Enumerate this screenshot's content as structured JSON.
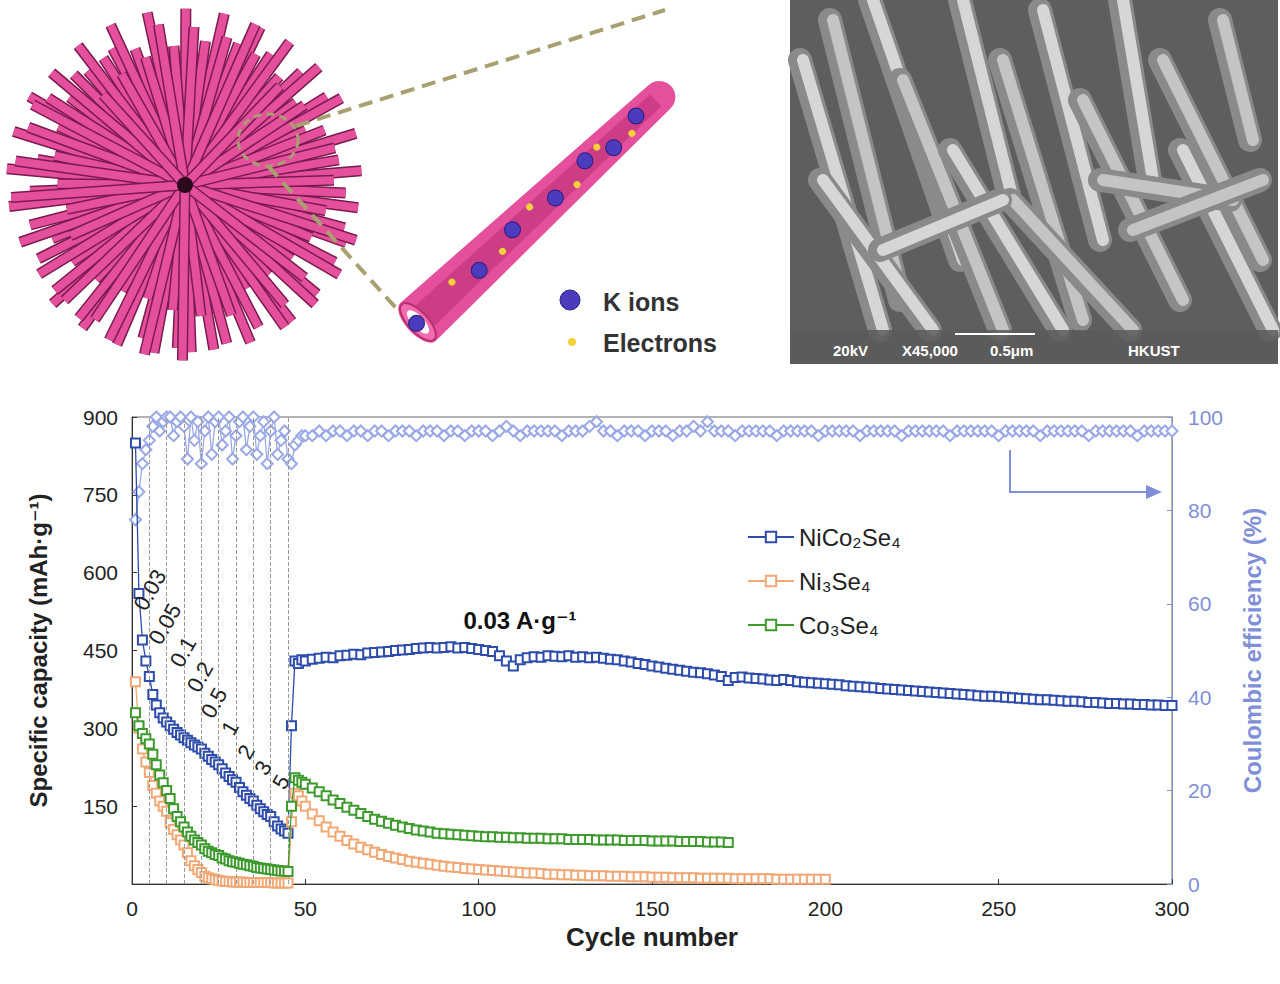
{
  "illustration": {
    "legend": [
      {
        "label": "K ions",
        "color": "#4b3bbd"
      },
      {
        "label": "Electrons",
        "color": "#f2d23a"
      }
    ]
  },
  "sem_image": {
    "voltage": "20kV",
    "magnification": "X45,000",
    "scale_bar": "0.5μm",
    "institution": "HKUST"
  },
  "chart_data": {
    "type": "line",
    "xlabel": "Cycle number",
    "ylabel": "Specific capacity (mAh·g⁻¹)",
    "y2label": "Coulombic efficiency (%)",
    "annotation": "0.03 A·g⁻¹",
    "rate_labels": [
      "0.03",
      "0.05",
      "0.1",
      "0.2",
      "0.5",
      "1",
      "2",
      "3",
      "5"
    ],
    "rate_boundaries": [
      5,
      10,
      15,
      20,
      25,
      30,
      35,
      40,
      45
    ],
    "xlim": [
      0,
      300
    ],
    "xticks": [
      0,
      50,
      100,
      150,
      200,
      250,
      300
    ],
    "ylim": [
      0,
      900
    ],
    "yticks": [
      150,
      300,
      450,
      600,
      750,
      900
    ],
    "y2lim": [
      0,
      100
    ],
    "y2ticks": [
      0,
      20,
      40,
      60,
      80,
      100
    ],
    "grid": false,
    "legend": "upper right",
    "x": [
      1,
      2,
      3,
      4,
      5,
      6,
      7,
      8,
      9,
      10,
      11,
      12,
      13,
      14,
      15,
      16,
      17,
      18,
      19,
      20,
      21,
      22,
      23,
      24,
      25,
      26,
      27,
      28,
      29,
      30,
      31,
      32,
      33,
      34,
      35,
      36,
      37,
      38,
      39,
      40,
      41,
      42,
      43,
      44,
      45,
      46,
      47,
      48,
      49,
      50,
      52,
      54,
      56,
      58,
      60,
      62,
      64,
      66,
      68,
      70,
      72,
      74,
      76,
      78,
      80,
      82,
      84,
      86,
      88,
      90,
      92,
      94,
      96,
      98,
      100,
      102,
      104,
      106,
      108,
      110,
      112,
      114,
      116,
      118,
      120,
      122,
      124,
      126,
      128,
      130,
      132,
      134,
      136,
      138,
      140,
      142,
      144,
      146,
      148,
      150,
      152,
      154,
      156,
      158,
      160,
      162,
      164,
      166,
      168,
      170,
      172,
      174,
      176,
      178,
      180,
      182,
      184,
      186,
      188,
      190,
      192,
      194,
      196,
      198,
      200,
      202,
      204,
      206,
      208,
      210,
      212,
      214,
      216,
      218,
      220,
      222,
      224,
      226,
      228,
      230,
      232,
      234,
      236,
      238,
      240,
      242,
      244,
      246,
      248,
      250,
      252,
      254,
      256,
      258,
      260,
      262,
      264,
      266,
      268,
      270,
      272,
      274,
      276,
      278,
      280,
      282,
      284,
      286,
      288,
      290,
      292,
      294,
      296,
      298,
      300
    ],
    "series": [
      {
        "name": "NiCo₂Se₄",
        "color": "#2d4cab",
        "marker": "square",
        "line_style": "solid",
        "values": [
          850,
          560,
          470,
          430,
          400,
          365,
          345,
          330,
          320,
          312,
          305,
          298,
          292,
          287,
          282,
          277,
          272,
          268,
          264,
          260,
          252,
          246,
          240,
          235,
          230,
          222,
          214,
          207,
          201,
          196,
          186,
          178,
          171,
          165,
          160,
          152,
          145,
          139,
          134,
          130,
          120,
          112,
          106,
          102,
          98,
          305,
          430,
          425,
          432,
          430,
          433,
          435,
          437,
          436,
          440,
          441,
          443,
          442,
          445,
          446,
          447,
          448,
          450,
          451,
          452,
          454,
          455,
          456,
          455,
          456,
          457,
          455,
          456,
          454,
          452,
          450,
          448,
          440,
          430,
          420,
          432,
          436,
          438,
          437,
          440,
          439,
          438,
          440,
          437,
          438,
          436,
          437,
          435,
          433,
          432,
          430,
          428,
          425,
          423,
          420,
          418,
          416,
          414,
          412,
          410,
          408,
          407,
          405,
          403,
          400,
          392,
          398,
          399,
          397,
          396,
          395,
          393,
          392,
          394,
          392,
          390,
          389,
          388,
          387,
          386,
          385,
          384,
          382,
          381,
          380,
          379,
          378,
          377,
          376,
          375,
          374,
          373,
          372,
          371,
          370,
          369,
          368,
          367,
          366,
          365,
          364,
          363,
          362,
          362,
          361,
          360,
          359,
          358,
          357,
          356,
          355,
          355,
          354,
          353,
          352,
          352,
          351,
          350,
          350,
          349,
          348,
          348,
          347,
          347,
          346,
          346,
          345,
          345,
          344,
          344
        ]
      },
      {
        "name": "Ni₃Se₄",
        "color": "#f2a874",
        "marker": "square",
        "line_style": "solid",
        "values": [
          390,
          300,
          260,
          235,
          215,
          190,
          175,
          160,
          150,
          140,
          118,
          105,
          95,
          85,
          75,
          60,
          45,
          35,
          28,
          22,
          15,
          12,
          10,
          8,
          7,
          6,
          5,
          5,
          4,
          4,
          4,
          4,
          3,
          3,
          3,
          3,
          3,
          3,
          3,
          3,
          2,
          2,
          2,
          2,
          2,
          120,
          175,
          170,
          160,
          150,
          135,
          122,
          110,
          100,
          92,
          84,
          77,
          71,
          66,
          61,
          57,
          53,
          50,
          47,
          44,
          42,
          40,
          38,
          36,
          34,
          33,
          32,
          30,
          29,
          28,
          27,
          26,
          25,
          24,
          23,
          22,
          21,
          21,
          20,
          19,
          19,
          18,
          18,
          17,
          17,
          16,
          16,
          16,
          15,
          15,
          15,
          14,
          14,
          14,
          13,
          13,
          13,
          12,
          12,
          12,
          12,
          11,
          11,
          11,
          11,
          11,
          10,
          10,
          10,
          10,
          10,
          10,
          9,
          9,
          9,
          9,
          9,
          9,
          9,
          9,
          null,
          null,
          null,
          null,
          null,
          null,
          null,
          null,
          null,
          null,
          null,
          null,
          null,
          null,
          null,
          null,
          null,
          null,
          null,
          null,
          null,
          null,
          null,
          null,
          null,
          null,
          null,
          null,
          null,
          null,
          null,
          null,
          null,
          null,
          null,
          null,
          null,
          null,
          null,
          null,
          null,
          null,
          null,
          null,
          null,
          null,
          null,
          null,
          null,
          null
        ]
      },
      {
        "name": "Co₃Se₄",
        "color": "#3d9a2c",
        "marker": "square",
        "line_style": "solid",
        "values": [
          330,
          305,
          290,
          280,
          270,
          250,
          230,
          210,
          195,
          180,
          165,
          145,
          130,
          120,
          110,
          100,
          92,
          85,
          80,
          75,
          68,
          63,
          60,
          57,
          55,
          50,
          48,
          45,
          43,
          42,
          40,
          38,
          37,
          35,
          34,
          32,
          31,
          30,
          29,
          28,
          27,
          26,
          25,
          25,
          24,
          150,
          205,
          200,
          196,
          192,
          185,
          178,
          170,
          162,
          155,
          148,
          142,
          136,
          130,
          125,
          121,
          117,
          113,
          110,
          107,
          104,
          102,
          100,
          98,
          97,
          96,
          95,
          94,
          93,
          92,
          91,
          91,
          90,
          90,
          89,
          89,
          88,
          88,
          88,
          87,
          87,
          87,
          86,
          86,
          86,
          86,
          85,
          85,
          85,
          85,
          84,
          84,
          84,
          84,
          83,
          83,
          83,
          83,
          82,
          82,
          82,
          82,
          81,
          81,
          81,
          80,
          null,
          null,
          null,
          null,
          null,
          null,
          null,
          null,
          null,
          null,
          null,
          null,
          null,
          null,
          null,
          null,
          null,
          null,
          null,
          null,
          null,
          null,
          null,
          null,
          null,
          null,
          null,
          null,
          null,
          null,
          null,
          null,
          null,
          null,
          null,
          null,
          null,
          null,
          null,
          null,
          null,
          null,
          null,
          null,
          null,
          null,
          null,
          null,
          null,
          null,
          null,
          null,
          null,
          null,
          null,
          null,
          null,
          null,
          null,
          null,
          null,
          null,
          null,
          null
        ]
      },
      {
        "axis": "y2",
        "color": "#9aa8e6",
        "marker": "diamond",
        "line_style": "solid",
        "values": [
          78,
          84,
          90,
          93,
          95,
          98,
          100,
          97,
          99,
          100,
          100,
          96,
          99,
          100,
          98,
          91,
          100,
          95,
          99,
          90,
          97,
          100,
          92,
          99,
          100,
          94,
          97,
          100,
          91,
          96,
          99,
          100,
          93,
          98,
          100,
          92,
          96,
          99,
          90,
          97,
          100,
          92,
          95,
          97,
          91,
          90,
          94,
          95,
          96,
          96,
          96,
          97,
          96,
          97,
          97,
          96,
          97,
          97,
          96,
          97,
          97,
          96,
          97,
          97,
          97,
          96,
          97,
          97,
          97,
          96,
          97,
          97,
          96,
          97,
          97,
          97,
          96,
          97,
          98,
          97,
          96,
          97,
          97,
          97,
          97,
          97,
          96,
          97,
          97,
          97,
          98,
          99,
          97,
          97,
          96,
          97,
          97,
          97,
          96,
          97,
          97,
          97,
          96,
          97,
          97,
          98,
          97,
          99,
          97,
          97,
          97,
          96,
          97,
          97,
          97,
          97,
          97,
          96,
          97,
          97,
          97,
          97,
          97,
          96,
          97,
          97,
          97,
          97,
          97,
          96,
          97,
          97,
          97,
          97,
          97,
          96,
          97,
          97,
          97,
          97,
          97,
          97,
          96,
          97,
          97,
          97,
          97,
          97,
          97,
          96,
          97,
          97,
          97,
          97,
          97,
          96,
          97,
          97,
          97,
          97,
          97,
          97,
          96,
          97,
          97,
          97,
          97,
          97,
          97,
          96,
          97,
          97,
          97,
          97,
          97
        ]
      }
    ]
  }
}
